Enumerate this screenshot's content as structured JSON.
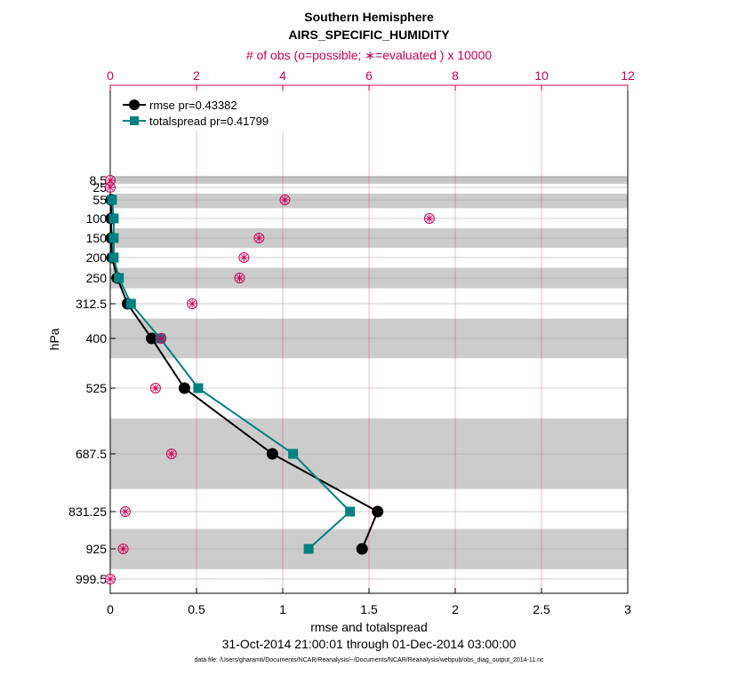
{
  "chart_data": {
    "type": "line",
    "title_line1": "Southern Hemisphere",
    "title_line2": "AIRS_SPECIFIC_HUMIDITY",
    "top_axis_label": "# of obs (o=possible; ∗=evaluated ) x 10000",
    "xlabel": "rmse and totalspread",
    "ylabel": "hPa",
    "date_range": "31-Oct-2014 21:00:01 through 01-Dec-2014 03:00:00",
    "footnote": "data file: /Users/gharamti/Documents/NCAR/Reanalysis/~/Documents/NCAR/Reanalysis/webpub/obs_diag_output_2014-11.nc",
    "xlim": [
      0,
      3
    ],
    "x_ticks": [
      0,
      0.5,
      1,
      1.5,
      2,
      2.5,
      3
    ],
    "x_tick_labels": [
      "0",
      "0.5",
      "1",
      "1.5",
      "2",
      "2.5",
      "3"
    ],
    "top_xlim": [
      0,
      12
    ],
    "top_ticks": [
      0,
      2,
      4,
      6,
      8,
      10,
      12
    ],
    "top_tick_labels": [
      "0",
      "2",
      "4",
      "6",
      "8",
      "10",
      "12"
    ],
    "levels": [
      8.5,
      25,
      55,
      100,
      150,
      200,
      250,
      312.5,
      400,
      525,
      687.5,
      831.25,
      925,
      999.5
    ],
    "level_labels": [
      "8.5",
      "25",
      "55",
      "100",
      "150",
      "200",
      "250",
      "312.5",
      "400",
      "525",
      "687.5",
      "831.25",
      "925",
      "999.5"
    ],
    "shaded_bands": [
      [
        0,
        17
      ],
      [
        40,
        75
      ],
      [
        125,
        175
      ],
      [
        225,
        275
      ],
      [
        350,
        450
      ],
      [
        600,
        775
      ],
      [
        875,
        975
      ]
    ],
    "series": [
      {
        "name": "rmse",
        "legend": "rmse pr=0.43382",
        "color": "#000000",
        "marker": "circle",
        "points": [
          [
            0.005,
            55
          ],
          [
            0.005,
            100
          ],
          [
            0.006,
            150
          ],
          [
            0.01,
            200
          ],
          [
            0.04,
            250
          ],
          [
            0.1,
            312.5
          ],
          [
            0.24,
            400
          ],
          [
            0.43,
            525
          ],
          [
            0.94,
            687.5
          ],
          [
            1.55,
            831.25
          ],
          [
            1.46,
            925
          ]
        ]
      },
      {
        "name": "totalspread",
        "legend": "totalspread pr=0.41799",
        "color": "#008080",
        "marker": "square",
        "points": [
          [
            0.01,
            55
          ],
          [
            0.02,
            100
          ],
          [
            0.02,
            150
          ],
          [
            0.02,
            200
          ],
          [
            0.05,
            250
          ],
          [
            0.12,
            312.5
          ],
          [
            0.29,
            400
          ],
          [
            0.51,
            525
          ],
          [
            1.06,
            687.5
          ],
          [
            1.39,
            831.25
          ],
          [
            1.15,
            925
          ]
        ]
      }
    ],
    "obs_counts": {
      "name": "# of obs",
      "color": "#cc0055",
      "units": "x 10000",
      "points": [
        [
          0.0,
          8.5
        ],
        [
          0.0,
          25
        ],
        [
          4.05,
          55
        ],
        [
          7.4,
          100
        ],
        [
          3.45,
          150
        ],
        [
          3.1,
          200
        ],
        [
          3.0,
          250
        ],
        [
          1.9,
          312.5
        ],
        [
          1.18,
          400
        ],
        [
          1.05,
          525
        ],
        [
          1.42,
          687.5
        ],
        [
          0.35,
          831.25
        ],
        [
          0.3,
          925
        ],
        [
          0.0,
          999.5
        ]
      ]
    }
  }
}
